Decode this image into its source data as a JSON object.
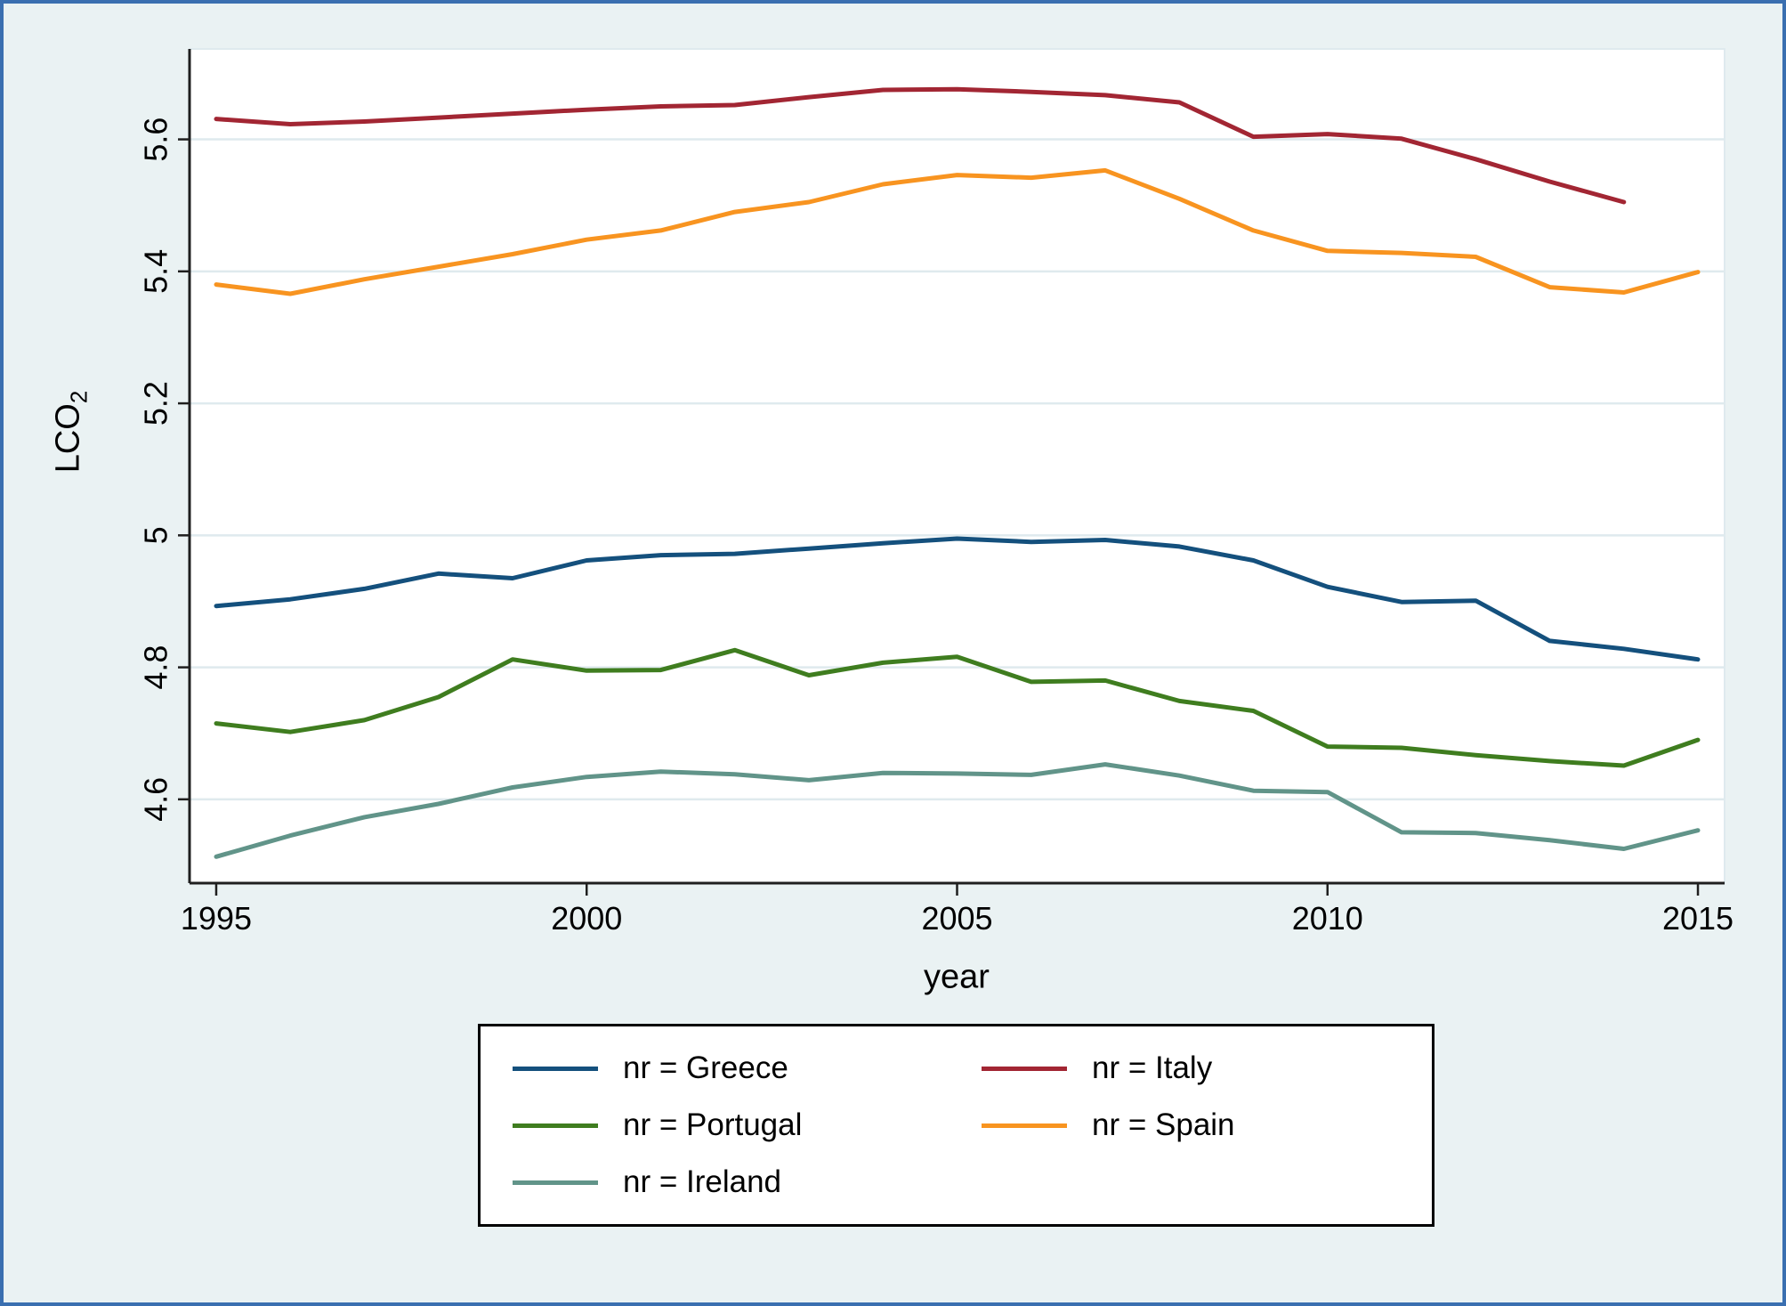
{
  "chart_data": {
    "type": "line",
    "title": "",
    "xlabel": "year",
    "ylabel_main": "LCO",
    "ylabel_sub": "2",
    "x": [
      1995,
      1996,
      1997,
      1998,
      1999,
      2000,
      2001,
      2002,
      2003,
      2004,
      2005,
      2006,
      2007,
      2008,
      2009,
      2010,
      2011,
      2012,
      2013,
      2014,
      2015
    ],
    "xtick_values": [
      1995,
      2000,
      2005,
      2010,
      2015
    ],
    "xtick_labels": [
      "1995",
      "2000",
      "2005",
      "2010",
      "2015"
    ],
    "ytick_values": [
      4.6,
      4.8,
      5.0,
      5.2,
      5.4,
      5.6
    ],
    "ytick_labels": [
      "4.6",
      "4.8",
      "5",
      "5.2",
      "5.4",
      "5.6"
    ],
    "xlim": [
      1994.64,
      2015.36
    ],
    "ylim": [
      4.473,
      5.737
    ],
    "grid": "horizontal",
    "legend_position": "bottom-center",
    "series": [
      {
        "name": "Greece",
        "legend_label": "nr = Greece",
        "color": "#14507d",
        "values": [
          4.893,
          4.903,
          4.919,
          4.942,
          4.935,
          4.962,
          4.97,
          4.972,
          4.98,
          4.988,
          4.995,
          4.99,
          4.993,
          4.983,
          4.962,
          4.922,
          4.899,
          4.901,
          4.84,
          4.828,
          4.812
        ]
      },
      {
        "name": "Italy",
        "legend_label": "nr = Italy",
        "color": "#a22633",
        "values": [
          5.631,
          5.623,
          5.627,
          5.633,
          5.639,
          5.645,
          5.65,
          5.652,
          5.664,
          5.675,
          5.676,
          5.672,
          5.667,
          5.656,
          5.604,
          5.608,
          5.601,
          5.57,
          5.536,
          5.505,
          null
        ]
      },
      {
        "name": "Portugal",
        "legend_label": "nr = Portugal",
        "color": "#3f7d1f",
        "values": [
          4.715,
          4.702,
          4.72,
          4.755,
          4.812,
          4.795,
          4.796,
          4.826,
          4.788,
          4.807,
          4.816,
          4.778,
          4.78,
          4.749,
          4.734,
          4.68,
          4.678,
          4.667,
          4.658,
          4.651,
          4.69
        ]
      },
      {
        "name": "Spain",
        "legend_label": "nr = Spain",
        "color": "#f89420",
        "values": [
          5.38,
          5.366,
          5.388,
          5.407,
          5.426,
          5.448,
          5.462,
          5.49,
          5.505,
          5.532,
          5.546,
          5.542,
          5.553,
          5.51,
          5.462,
          5.431,
          5.428,
          5.422,
          5.376,
          5.368,
          5.399
        ]
      },
      {
        "name": "Ireland",
        "legend_label": "nr = Ireland",
        "color": "#619489",
        "values": [
          4.513,
          4.545,
          4.573,
          4.593,
          4.618,
          4.634,
          4.642,
          4.638,
          4.629,
          4.64,
          4.639,
          4.637,
          4.653,
          4.636,
          4.613,
          4.611,
          4.55,
          4.549,
          4.538,
          4.525,
          4.553
        ]
      }
    ],
    "colors": {
      "background": "#eaf2f3",
      "plot_background": "#ffffff",
      "gridline": "#dfeaee",
      "axis": "#1f1f1f",
      "figure_border": "#3a6fb0",
      "legend_border": "#000000",
      "legend_background": "#ffffff",
      "text": "#000000"
    }
  }
}
